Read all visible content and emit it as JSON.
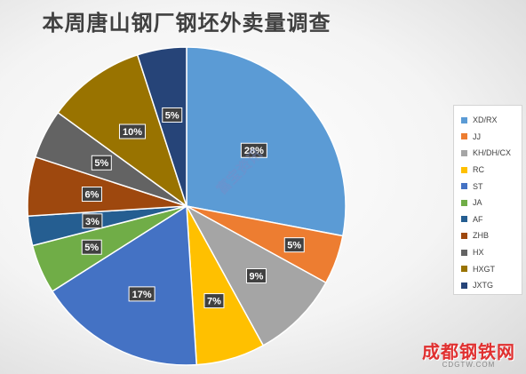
{
  "chart_data": {
    "type": "pie",
    "title": "本周唐山钢厂钢坯外卖量调查",
    "slices": [
      {
        "name": "XD/RX",
        "value": 28,
        "label": "28%",
        "color": "#5B9BD5"
      },
      {
        "name": "JJ",
        "value": 5,
        "label": "5%",
        "color": "#ED7D31"
      },
      {
        "name": "KH/DH/CX",
        "value": 9,
        "label": "9%",
        "color": "#A5A5A5"
      },
      {
        "name": "RC",
        "value": 7,
        "label": "7%",
        "color": "#FFC000"
      },
      {
        "name": "ST",
        "value": 17,
        "label": "17%",
        "color": "#4472C4"
      },
      {
        "name": "JA",
        "value": 5,
        "label": "5%",
        "color": "#70AD47"
      },
      {
        "name": "AF",
        "value": 3,
        "label": "3%",
        "color": "#255E91"
      },
      {
        "name": "ZHB",
        "value": 6,
        "label": "6%",
        "color": "#9E480E"
      },
      {
        "name": "HX",
        "value": 5,
        "label": "5%",
        "color": "#636363"
      },
      {
        "name": "HXGT",
        "value": 10,
        "label": "10%",
        "color": "#997300"
      },
      {
        "name": "JXTG",
        "value": 5,
        "label": "5%",
        "color": "#264478"
      }
    ],
    "legend_position": "right"
  },
  "watermark": {
    "logo_text": "成都钢铁网",
    "logo_sub": "CDGTW.COM",
    "center_text": "富宝资讯"
  }
}
